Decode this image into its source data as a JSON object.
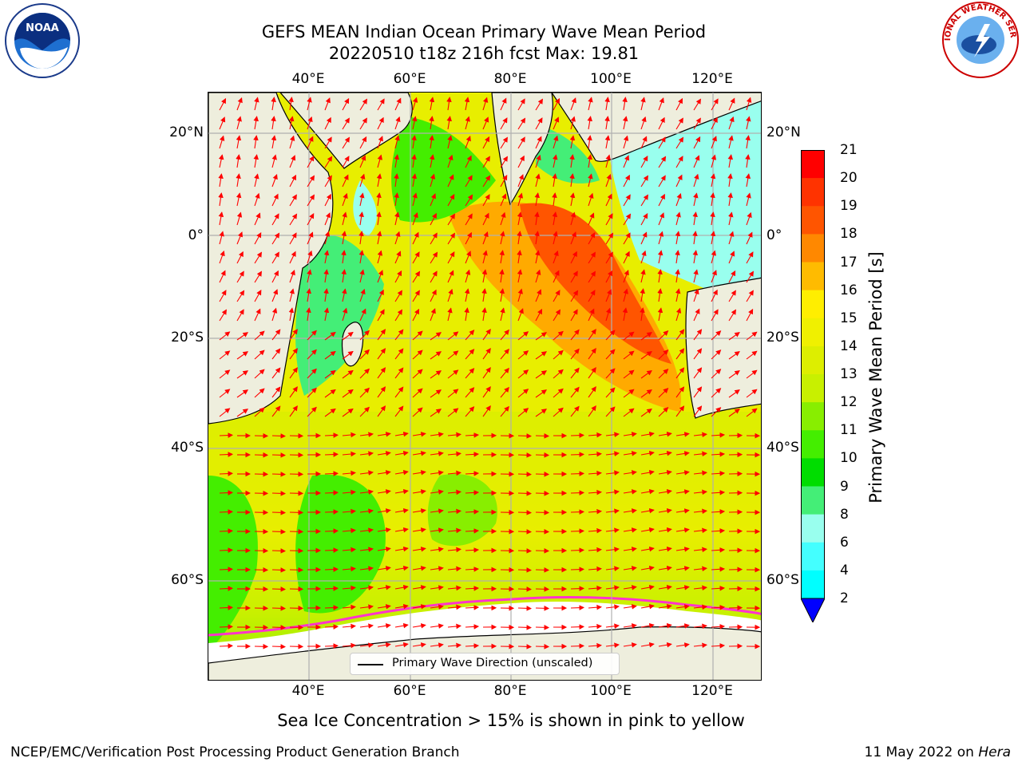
{
  "title": {
    "line1": "GEFS MEAN Indian Ocean Primary Wave Mean Period",
    "line2": "20220510 t18z 216h fcst   Max: 19.81"
  },
  "axes": {
    "lon_labels": [
      "40°E",
      "60°E",
      "80°E",
      "100°E",
      "120°E"
    ],
    "lat_labels": [
      "20°N",
      "0°",
      "20°S",
      "40°S",
      "60°S"
    ]
  },
  "colorbar": {
    "label": "Primary Wave Mean Period [s]",
    "ticks": [
      "21",
      "20",
      "19",
      "18",
      "17",
      "16",
      "15",
      "14",
      "13",
      "12",
      "11",
      "10",
      "9",
      "8",
      "6",
      "4",
      "2"
    ],
    "colors": [
      "#ff0000",
      "#ff3300",
      "#ff5500",
      "#ff8800",
      "#ffbb00",
      "#ffee00",
      "#f0f000",
      "#ddee00",
      "#c8f000",
      "#88ee00",
      "#44ee00",
      "#00dd00",
      "#44ee77",
      "#99ffee",
      "#44ffff",
      "#00ffff",
      "#0088ff"
    ],
    "extend_color": "#0000ff"
  },
  "legend": {
    "label": "Primary Wave Direction (unscaled)"
  },
  "footnote": "Sea Ice Concentration > 15% is shown in pink to yellow",
  "credit": "NCEP/EMC/Verification Post Processing Product Generation Branch",
  "date": {
    "text": "11 May 2022 on ",
    "host": "Hera"
  },
  "logos": {
    "left": "NOAA",
    "right": "NATIONAL WEATHER SERVICE"
  },
  "map": {
    "land_color": "#eeeedd",
    "ice_color": "#ffffff",
    "arrow_color": "#ff0000",
    "grid_color": "#b0b0b0"
  }
}
